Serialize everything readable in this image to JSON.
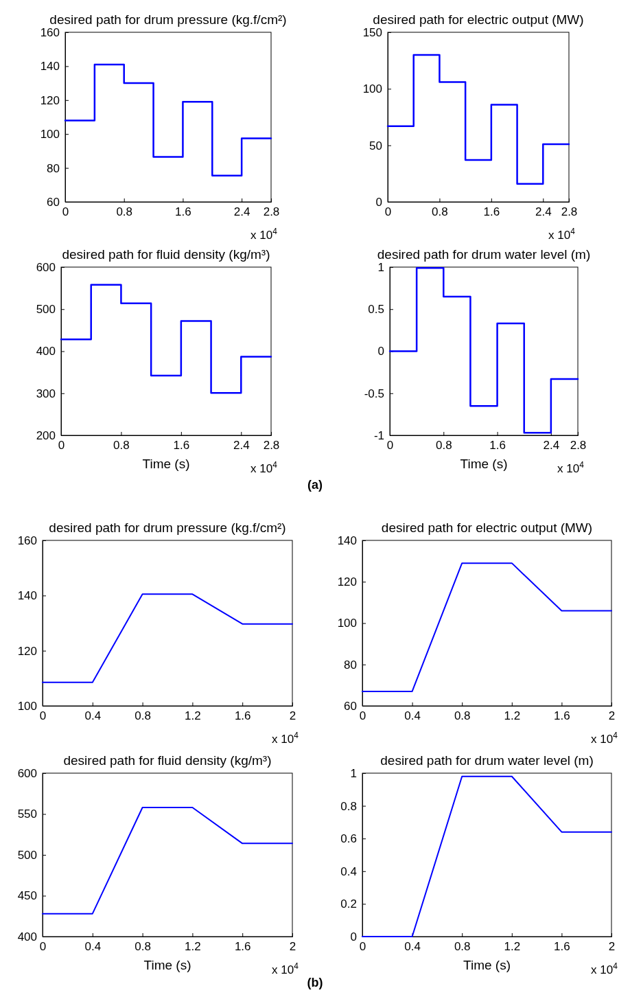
{
  "chart_data": [
    {
      "type": "step",
      "title": "desired path for drum pressure (kg.f/cm²)",
      "annotations": [
        "x 10$^{4}$"
      ],
      "x": [
        0,
        0.4,
        0.8,
        1.2,
        1.6,
        2.0,
        2.4,
        2.8
      ],
      "series": [
        {
          "color": "#0000ff",
          "values": [
            108,
            141,
            130,
            86.5,
            119,
            75.5,
            97.5,
            97.5
          ]
        }
      ],
      "xlim": [
        0,
        2.8
      ],
      "ylim": [
        60,
        160
      ],
      "xticks": [
        0,
        0.8,
        1.6,
        2.4,
        2.8
      ],
      "yticks": [
        60,
        80,
        100,
        120,
        140,
        160
      ]
    },
    {
      "type": "step",
      "title": "desired path for electric output (MW)",
      "annotations": [
        "x 10$^{4}$"
      ],
      "x": [
        0,
        0.4,
        0.8,
        1.2,
        1.6,
        2.0,
        2.4,
        2.8
      ],
      "series": [
        {
          "color": "#0000ff",
          "values": [
            67,
            130,
            106,
            37,
            86,
            16,
            51,
            51
          ]
        }
      ],
      "xlim": [
        0,
        2.8
      ],
      "ylim": [
        0,
        150
      ],
      "xticks": [
        0,
        0.8,
        1.6,
        2.4,
        2.8
      ],
      "yticks": [
        0,
        50,
        100,
        150
      ]
    },
    {
      "type": "step",
      "title": "desired path for fluid density (kg/m³)",
      "xlabel": "Time (s)",
      "annotations": [
        "x 10$^{4}$",
        "(a)"
      ],
      "x": [
        0,
        0.4,
        0.8,
        1.2,
        1.6,
        2.0,
        2.4,
        2.8
      ],
      "series": [
        {
          "color": "#0000ff",
          "values": [
            428,
            558,
            514,
            342,
            472,
            301,
            387,
            387
          ]
        }
      ],
      "xlim": [
        0,
        2.8
      ],
      "ylim": [
        200,
        600
      ],
      "xticks": [
        0,
        0.8,
        1.6,
        2.4,
        2.8
      ],
      "yticks": [
        200,
        300,
        400,
        500,
        600
      ]
    },
    {
      "type": "step",
      "title": "desired path for drum water level (m)",
      "xlabel": "Time (s)",
      "annotations": [
        "x 10$^{4}$"
      ],
      "x": [
        0,
        0.4,
        0.8,
        1.2,
        1.6,
        2.0,
        2.4,
        2.8
      ],
      "series": [
        {
          "color": "#0000ff",
          "values": [
            0,
            0.99,
            0.65,
            -0.65,
            0.33,
            -0.97,
            -0.33,
            -0.33
          ]
        }
      ],
      "xlim": [
        0,
        2.8
      ],
      "ylim": [
        -1,
        1
      ],
      "xticks": [
        0,
        0.8,
        1.6,
        2.4,
        2.8
      ],
      "yticks": [
        -1,
        -0.5,
        0,
        0.5,
        1
      ]
    },
    {
      "type": "line",
      "title": "desired path for drum pressure (kg.f/cm²)",
      "annotations": [
        "x 10$^{4}$"
      ],
      "x": [
        0,
        0.4,
        0.8,
        1.2,
        1.6,
        2
      ],
      "series": [
        {
          "color": "#0000ff",
          "values": [
            108.5,
            108.5,
            140.5,
            140.5,
            129.7,
            129.7
          ]
        }
      ],
      "xlim": [
        0,
        2
      ],
      "ylim": [
        100,
        160
      ],
      "xticks": [
        0,
        0.4,
        0.8,
        1.2,
        1.6,
        2
      ],
      "yticks": [
        100,
        120,
        140,
        160
      ]
    },
    {
      "type": "line",
      "title": "desired path for electric output (MW)",
      "annotations": [
        "x 10$^{4}$"
      ],
      "x": [
        0,
        0.4,
        0.8,
        1.2,
        1.6,
        2
      ],
      "series": [
        {
          "color": "#0000ff",
          "values": [
            67,
            67,
            129,
            129,
            106,
            106
          ]
        }
      ],
      "xlim": [
        0,
        2
      ],
      "ylim": [
        60,
        140
      ],
      "xticks": [
        0,
        0.4,
        0.8,
        1.2,
        1.6,
        2
      ],
      "yticks": [
        60,
        80,
        100,
        120,
        140
      ]
    },
    {
      "type": "line",
      "title": "desired path for fluid density (kg/m³)",
      "xlabel": "Time (s)",
      "annotations": [
        "x 10$^{4}$",
        "(b)"
      ],
      "x": [
        0,
        0.4,
        0.8,
        1.2,
        1.6,
        2
      ],
      "series": [
        {
          "color": "#0000ff",
          "values": [
            428,
            428,
            558,
            558,
            514,
            514
          ]
        }
      ],
      "xlim": [
        0,
        2
      ],
      "ylim": [
        400,
        600
      ],
      "xticks": [
        0,
        0.4,
        0.8,
        1.2,
        1.6,
        2
      ],
      "yticks": [
        400,
        450,
        500,
        550,
        600
      ]
    },
    {
      "type": "line",
      "title": "desired path for drum water level (m)",
      "xlabel": "Time (s)",
      "annotations": [
        "x 10$^{4}$"
      ],
      "x": [
        0,
        0.4,
        0.8,
        1.2,
        1.6,
        2
      ],
      "series": [
        {
          "color": "#0000ff",
          "values": [
            0,
            0,
            0.98,
            0.98,
            0.64,
            0.64
          ]
        }
      ],
      "xlim": [
        0,
        2
      ],
      "ylim": [
        0,
        1
      ],
      "xticks": [
        0,
        0.4,
        0.8,
        1.2,
        1.6,
        2
      ],
      "yticks": [
        0,
        0.2,
        0.4,
        0.6,
        0.8,
        1
      ]
    }
  ]
}
